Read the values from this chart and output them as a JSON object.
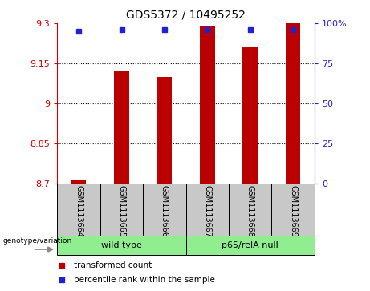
{
  "title": "GDS5372 / 10495252",
  "samples": [
    "GSM1113664",
    "GSM1113665",
    "GSM1113666",
    "GSM1113667",
    "GSM1113668",
    "GSM1113669"
  ],
  "red_values": [
    8.71,
    9.12,
    9.1,
    9.29,
    9.21,
    9.3
  ],
  "blue_values": [
    95,
    96,
    96,
    96,
    96,
    96
  ],
  "ylim_left": [
    8.7,
    9.3
  ],
  "ylim_right": [
    0,
    100
  ],
  "yticks_left": [
    8.7,
    8.85,
    9.0,
    9.15,
    9.3
  ],
  "yticks_right": [
    0,
    25,
    50,
    75,
    100
  ],
  "ytick_labels_left": [
    "8.7",
    "8.85",
    "9",
    "9.15",
    "9.3"
  ],
  "ytick_labels_right": [
    "0",
    "25",
    "50",
    "75",
    "100%"
  ],
  "groups": [
    {
      "label": "wild type",
      "indices": [
        0,
        1,
        2
      ],
      "color": "#90EE90"
    },
    {
      "label": "p65/relA null",
      "indices": [
        3,
        4,
        5
      ],
      "color": "#90EE90"
    }
  ],
  "group_label_prefix": "genotype/variation",
  "bar_color": "#BB0000",
  "dot_color": "#2222CC",
  "bar_width": 0.35,
  "sample_box_color": "#C8C8C8",
  "legend_red_label": "transformed count",
  "legend_blue_label": "percentile rank within the sample",
  "arrow_color": "#888888"
}
